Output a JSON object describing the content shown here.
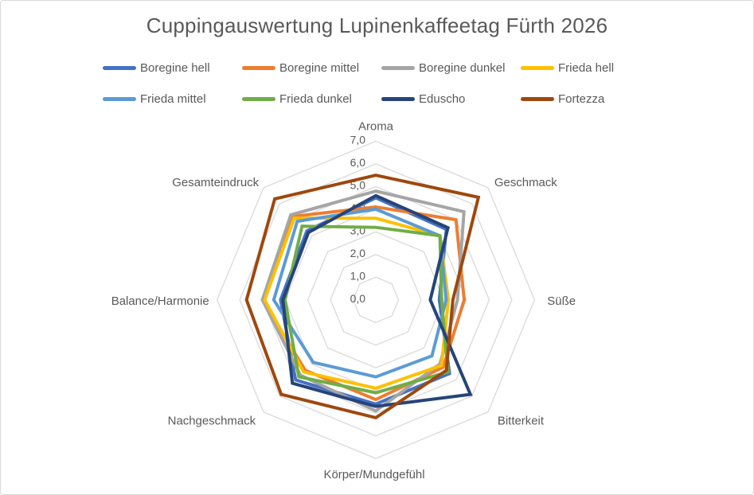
{
  "title": "Cuppingauswertung Lupinenkaffeetag Fürth 2026",
  "colors": {
    "text": "#595959",
    "gridline": "#D9D9D9",
    "background": "#FFFFFF",
    "frame_border": "#D9D9D9"
  },
  "chart_data": {
    "type": "radar",
    "title": "Cuppingauswertung Lupinenkaffeetag Fürth 2026",
    "grid": true,
    "grid_shape": "octagon",
    "legend_position": "top",
    "legend_rows": 2,
    "axis": {
      "min": 0,
      "max": 7,
      "step": 1,
      "tick_labels": [
        "0,0",
        "1,0",
        "2,0",
        "3,0",
        "4,0",
        "5,0",
        "6,0",
        "7,0"
      ]
    },
    "categories": [
      "Aroma",
      "Geschmack",
      "Süße",
      "Bitterkeit",
      "Körper/Mundgefühl",
      "Nachgeschmack",
      "Balance/Harmonie",
      "Gesamteindruck"
    ],
    "series": [
      {
        "name": "Boregine hell",
        "color": "#4472C4",
        "values": [
          4.5,
          4.4,
          2.8,
          4.6,
          4.6,
          5.0,
          4.2,
          4.3
        ]
      },
      {
        "name": "Boregine mittel",
        "color": "#ED7D31",
        "values": [
          4.1,
          5.0,
          3.9,
          4.2,
          4.4,
          4.4,
          5.0,
          5.2
        ]
      },
      {
        "name": "Boregine dunkel",
        "color": "#A5A5A5",
        "values": [
          4.8,
          5.5,
          3.6,
          4.0,
          4.9,
          4.7,
          5.0,
          5.3
        ]
      },
      {
        "name": "Frieda hell",
        "color": "#FFC000",
        "values": [
          3.6,
          4.0,
          3.2,
          4.1,
          3.9,
          4.5,
          4.9,
          5.1
        ]
      },
      {
        "name": "Frieda mittel",
        "color": "#5B9BD5",
        "values": [
          4.0,
          4.0,
          3.1,
          3.5,
          3.4,
          3.9,
          4.5,
          4.9
        ]
      },
      {
        "name": "Frieda dunkel",
        "color": "#70AD47",
        "values": [
          3.2,
          4.0,
          2.9,
          4.5,
          4.1,
          4.8,
          4.0,
          4.6
        ]
      },
      {
        "name": "Eduscho",
        "color": "#264478",
        "values": [
          4.6,
          4.5,
          2.4,
          5.9,
          4.7,
          5.2,
          4.1,
          4.2
        ]
      },
      {
        "name": "Fortezza",
        "color": "#9E480E",
        "values": [
          5.5,
          6.4,
          3.4,
          4.4,
          5.2,
          5.9,
          5.7,
          6.3
        ]
      }
    ]
  }
}
